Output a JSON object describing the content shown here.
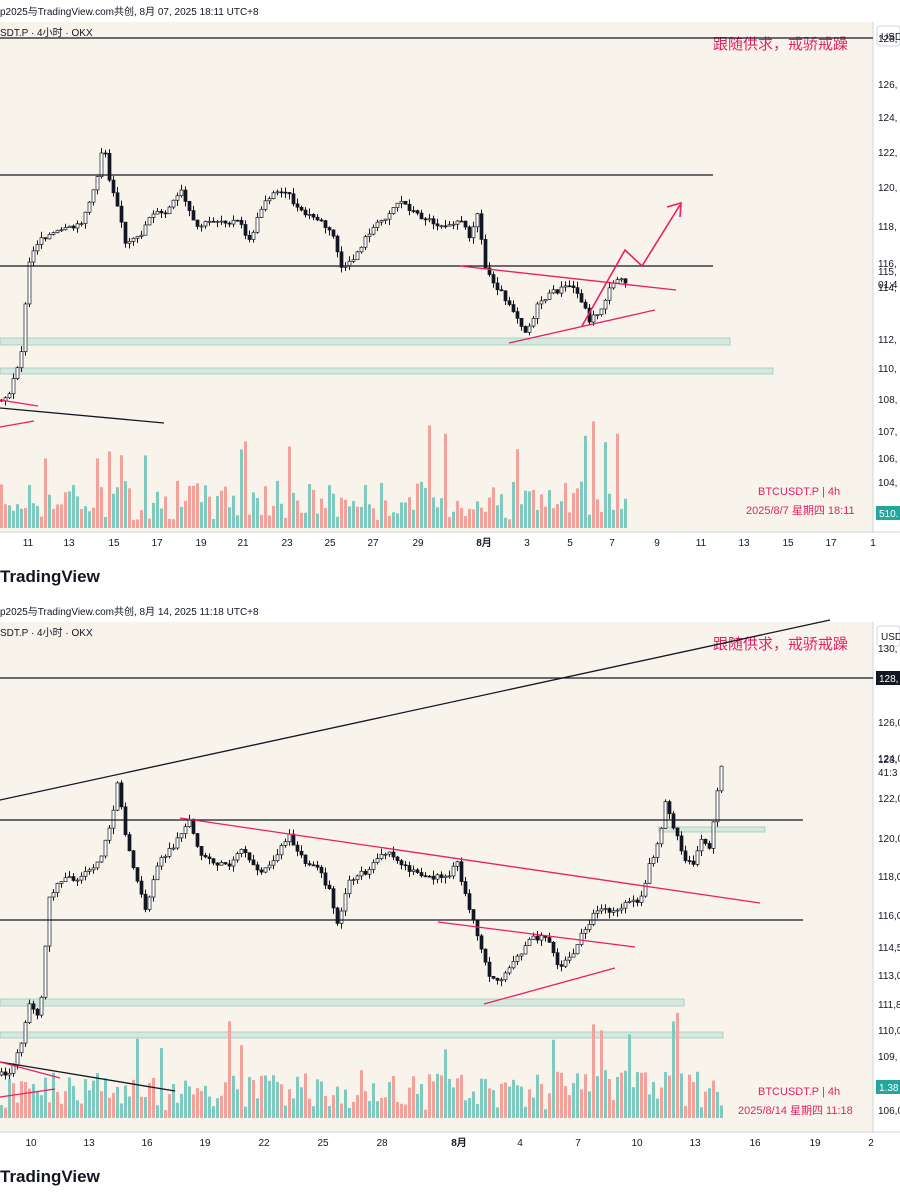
{
  "charts": [
    {
      "header": "p2025与TradingView.com共创, 8月 07, 2025 18:11 UTC+8",
      "legend": "SDT.P · 4小时 · OKX",
      "caption": "跟随供求，戒骄戒躁",
      "watermark_symbol": "BTCUSDT.P | 4h",
      "watermark_date": "2025/8/7 星期四 18:11",
      "currency": "USD",
      "brand": "TradingView",
      "last_price_label": "115,",
      "countdown_label": "01:4",
      "volume_badge": "510.",
      "price_ticks": [
        "128,",
        "126,",
        "124,",
        "122,",
        "120,",
        "118,",
        "116,",
        "114,",
        "112,",
        "110,",
        "108,",
        "107,",
        "106,",
        "104,"
      ],
      "date_ticks": [
        "11",
        "13",
        "15",
        "17",
        "19",
        "21",
        "23",
        "25",
        "27",
        "29",
        "8月",
        "3",
        "5",
        "7",
        "9",
        "11",
        "13",
        "15",
        "17",
        "1"
      ]
    },
    {
      "header": "p2025与TradingView.com共创, 8月 14, 2025 11:18 UTC+8",
      "legend": "SDT.P · 4小时 · OKX",
      "caption": "跟随供求，戒骄戒躁",
      "watermark_symbol": "BTCUSDT.P | 4h",
      "watermark_date": "2025/8/14 星期四 11:18",
      "currency": "USD",
      "brand": "TradingView",
      "level_badge": "128,",
      "last_price_label": "123,",
      "countdown_label": "41:3",
      "volume_badge": "1.38",
      "price_ticks": [
        "130,",
        "126,0",
        "124,0",
        "122,0",
        "120,0",
        "118,0",
        "116,0",
        "114,5",
        "113,0",
        "111,8",
        "110,0",
        "109,",
        "108,",
        "106,0"
      ],
      "date_ticks": [
        "10",
        "13",
        "16",
        "19",
        "22",
        "25",
        "28",
        "8月",
        "4",
        "7",
        "10",
        "13",
        "16",
        "19",
        "2"
      ]
    }
  ],
  "chart_data": [
    {
      "type": "candlestick",
      "series_name": "BTCUSDT.P",
      "interval": "4h",
      "date_range": [
        "2025-07-09",
        "2025-08-07"
      ],
      "y_ticks": [
        128,
        126,
        124,
        122,
        120,
        118,
        116,
        114,
        112,
        110,
        108,
        107,
        106,
        104
      ],
      "key_points": [
        {
          "date": "2025-07-10",
          "close": 111
        },
        {
          "date": "2025-07-11",
          "close": 117.5
        },
        {
          "date": "2025-07-14",
          "close": 123
        },
        {
          "date": "2025-07-15",
          "close": 117
        },
        {
          "date": "2025-07-18",
          "close": 120
        },
        {
          "date": "2025-07-25",
          "close": 115
        },
        {
          "date": "2025-07-28",
          "close": 119.5
        },
        {
          "date": "2025-07-31",
          "close": 116
        },
        {
          "date": "2025-08-02",
          "close": 113
        },
        {
          "date": "2025-08-05",
          "close": 114.5
        },
        {
          "date": "2025-08-06",
          "close": 113
        },
        {
          "date": "2025-08-07",
          "close": 115
        }
      ],
      "horizontal_levels": [
        128,
        120.5,
        116
      ],
      "support_zones": [
        112,
        110.2
      ]
    },
    {
      "type": "candlestick",
      "series_name": "BTCUSDT.P",
      "interval": "4h",
      "date_range": [
        "2025-07-08",
        "2025-08-14"
      ],
      "y_ticks": [
        130,
        126,
        124,
        122,
        120,
        118,
        116,
        114.5,
        113,
        111.8,
        110,
        109,
        108,
        106
      ],
      "key_points": [
        {
          "date": "2025-07-10",
          "close": 111.8
        },
        {
          "date": "2025-07-11",
          "close": 118
        },
        {
          "date": "2025-07-14",
          "close": 122.5
        },
        {
          "date": "2025-07-15",
          "close": 117
        },
        {
          "date": "2025-07-25",
          "close": 115.5
        },
        {
          "date": "2025-07-28",
          "close": 119
        },
        {
          "date": "2025-08-01",
          "close": 116
        },
        {
          "date": "2025-08-02",
          "close": 112
        },
        {
          "date": "2025-08-06",
          "close": 113.5
        },
        {
          "date": "2025-08-08",
          "close": 117
        },
        {
          "date": "2025-08-11",
          "close": 122
        },
        {
          "date": "2025-08-12",
          "close": 118.5
        },
        {
          "date": "2025-08-14",
          "close": 123.5
        }
      ],
      "horizontal_levels": [
        128,
        120.5,
        116
      ],
      "support_zones": [
        111.8,
        110
      ]
    }
  ]
}
